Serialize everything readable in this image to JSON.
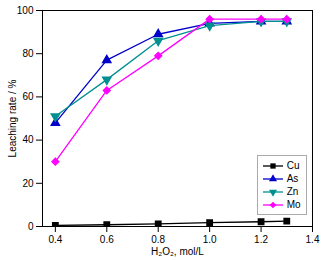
{
  "chart_data": {
    "type": "line",
    "x": [
      0.4,
      0.6,
      0.8,
      1.0,
      1.2,
      1.3
    ],
    "series": [
      {
        "name": "Cu",
        "color": "#000000",
        "marker": "square",
        "values": [
          0.5,
          0.8,
          1.2,
          1.8,
          2.2,
          2.5
        ]
      },
      {
        "name": "As",
        "color": "#0000cc",
        "marker": "triangle-up",
        "values": [
          48,
          77,
          89,
          94,
          95,
          95
        ]
      },
      {
        "name": "Zn",
        "color": "#009090",
        "marker": "triangle-down",
        "values": [
          51,
          68,
          86,
          93,
          95,
          95
        ]
      },
      {
        "name": "Mo",
        "color": "#ff00ff",
        "marker": "diamond",
        "values": [
          30,
          63,
          79,
          96,
          96,
          96
        ]
      }
    ],
    "xlabel": "H₂O₂, mol/L",
    "ylabel": "Leaching rate / %",
    "xlim": [
      0.35,
      1.4
    ],
    "ylim": [
      0,
      100
    ],
    "xticks": [
      0.4,
      0.6,
      0.8,
      {
        "value": 1.0,
        "label": "1.0"
      },
      1.2,
      1.4
    ],
    "yticks": [
      0,
      20,
      40,
      60,
      80,
      100
    ],
    "grid": false,
    "legend": "lower right"
  }
}
